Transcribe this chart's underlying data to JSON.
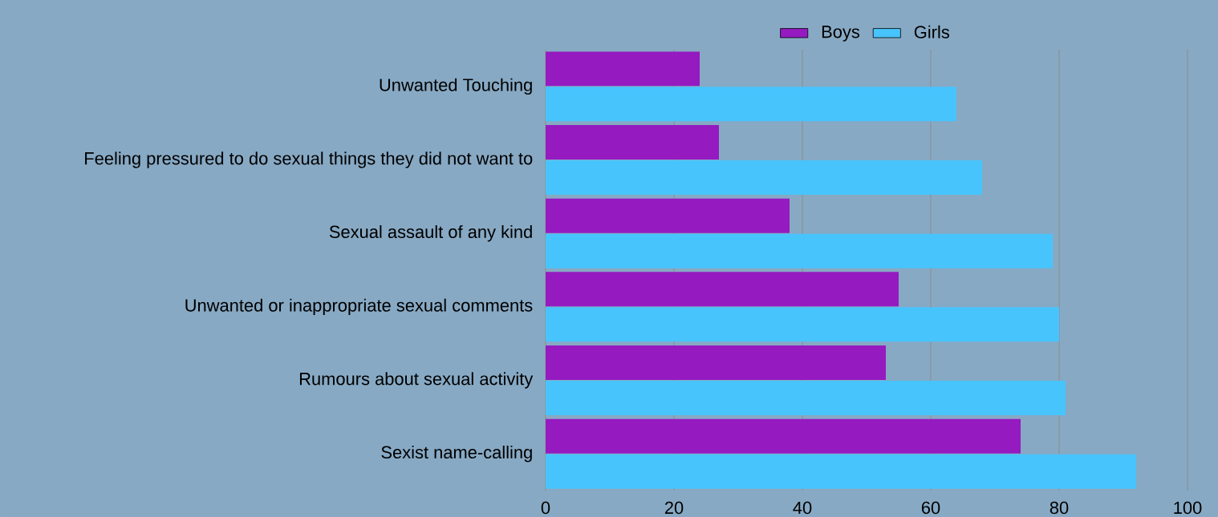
{
  "chart_data": {
    "type": "bar",
    "orientation": "horizontal",
    "categories": [
      "Unwanted Touching",
      "Feeling pressured to do sexual things they did not want to",
      "Sexual assault of any kind",
      "Unwanted or inappropriate sexual comments",
      "Rumours about sexual activity",
      "Sexist name-calling"
    ],
    "series": [
      {
        "name": "Boys",
        "color": "#951ac0",
        "values": [
          24,
          27,
          38,
          55,
          53,
          74
        ]
      },
      {
        "name": "Girls",
        "color": "#48c4fc",
        "values": [
          64,
          68,
          79,
          80,
          81,
          92
        ]
      }
    ],
    "xlim": [
      0,
      100
    ],
    "xticks": [
      0,
      20,
      40,
      60,
      80,
      100
    ],
    "grid": "x",
    "legend": "top"
  }
}
